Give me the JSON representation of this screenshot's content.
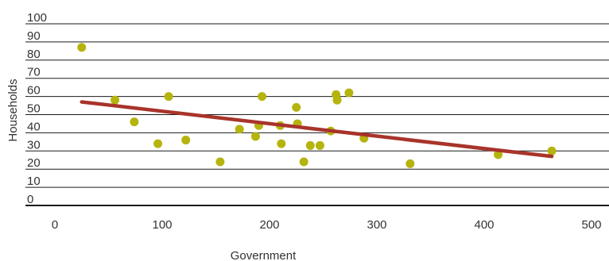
{
  "chart_data": {
    "type": "scatter",
    "title": "",
    "xlabel": "Government",
    "ylabel": "Households",
    "xlim": [
      0,
      500
    ],
    "ylim": [
      0,
      100
    ],
    "x_ticks": [
      0,
      100,
      200,
      300,
      400,
      500
    ],
    "y_ticks": [
      0,
      10,
      20,
      30,
      40,
      50,
      60,
      70,
      80,
      90,
      100
    ],
    "grid": "horizontal",
    "legend": "none",
    "series": [
      {
        "points": [
          {
            "x": 25,
            "y": 87
          },
          {
            "x": 56,
            "y": 58
          },
          {
            "x": 74,
            "y": 46
          },
          {
            "x": 96,
            "y": 34
          },
          {
            "x": 106,
            "y": 60
          },
          {
            "x": 122,
            "y": 36
          },
          {
            "x": 154,
            "y": 24
          },
          {
            "x": 172,
            "y": 42
          },
          {
            "x": 187,
            "y": 38
          },
          {
            "x": 190,
            "y": 44
          },
          {
            "x": 193,
            "y": 60
          },
          {
            "x": 210,
            "y": 44
          },
          {
            "x": 211,
            "y": 34
          },
          {
            "x": 225,
            "y": 54
          },
          {
            "x": 226,
            "y": 45
          },
          {
            "x": 232,
            "y": 24
          },
          {
            "x": 238,
            "y": 33
          },
          {
            "x": 247,
            "y": 33
          },
          {
            "x": 257,
            "y": 41
          },
          {
            "x": 262,
            "y": 61
          },
          {
            "x": 263,
            "y": 58
          },
          {
            "x": 274,
            "y": 62
          },
          {
            "x": 288,
            "y": 37
          },
          {
            "x": 331,
            "y": 23
          },
          {
            "x": 413,
            "y": 28
          },
          {
            "x": 463,
            "y": 30
          }
        ]
      }
    ],
    "trendline": {
      "x": [
        25,
        463
      ],
      "y": [
        57,
        27
      ]
    },
    "colors": {
      "points": "#b5b40e",
      "trendline": "#a8342a",
      "gridline": "#1a1a1a",
      "text": "#333333"
    }
  }
}
